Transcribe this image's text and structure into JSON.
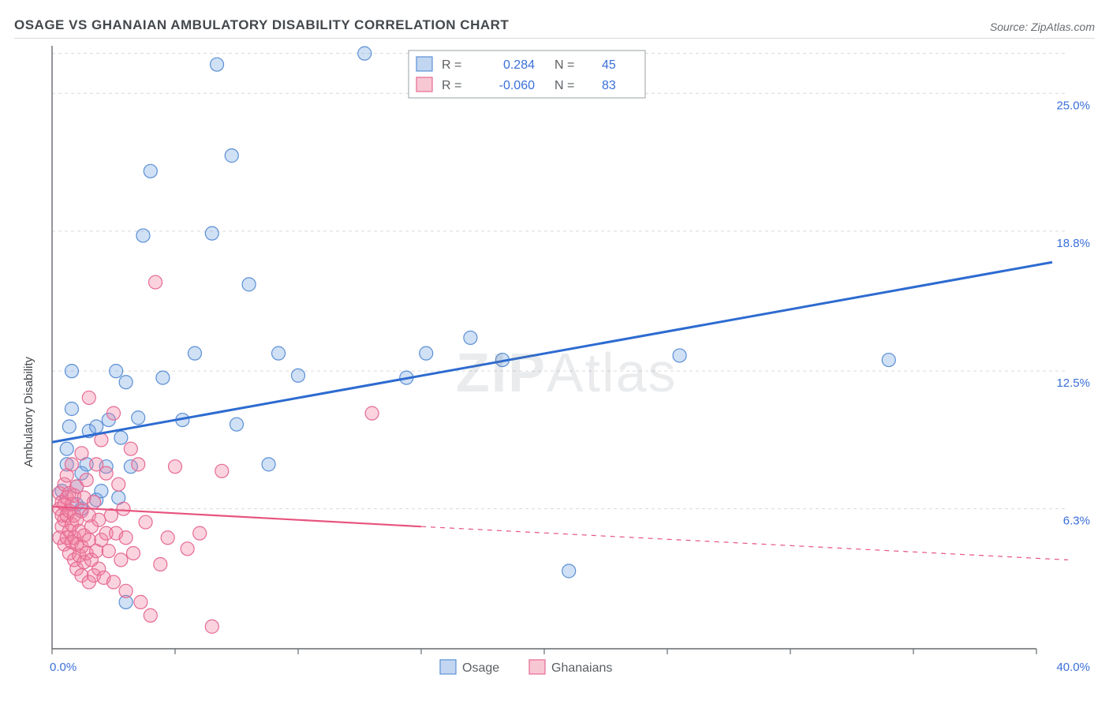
{
  "title": "OSAGE VS GHANAIAN AMBULATORY DISABILITY CORRELATION CHART",
  "source": "Source: ZipAtlas.com",
  "ylabel": "Ambulatory Disability",
  "watermark": "ZIPAtlas",
  "chart": {
    "type": "scatter",
    "xlim": [
      0,
      40
    ],
    "ylim": [
      0,
      27
    ],
    "xticks": [
      0,
      5,
      10,
      15,
      20,
      25,
      30,
      35,
      40
    ],
    "yticks": [
      6.3,
      12.5,
      18.8,
      25.0
    ],
    "xtick_labels": {
      "0": "0.0%",
      "40": "40.0%"
    },
    "ytick_labels": [
      "6.3%",
      "12.5%",
      "18.8%",
      "25.0%"
    ],
    "axis_label_color": "#3a6fd8",
    "axis_label_fontsize": 15,
    "grid_color": "#d9d9d9",
    "axis_color": "#666a6e",
    "background_color": "#ffffff",
    "marker_radius": 8.5,
    "marker_stroke_width": 1.2,
    "series": [
      {
        "name": "Osage",
        "fill": "rgba(120,165,225,0.35)",
        "stroke": "#5a8fd6",
        "points": [
          [
            0.4,
            7.1
          ],
          [
            0.6,
            8.3
          ],
          [
            0.6,
            9.0
          ],
          [
            0.7,
            10.0
          ],
          [
            0.8,
            10.8
          ],
          [
            0.8,
            12.5
          ],
          [
            1.0,
            6.5
          ],
          [
            1.0,
            7.3
          ],
          [
            1.2,
            7.9
          ],
          [
            1.2,
            6.3
          ],
          [
            1.4,
            8.3
          ],
          [
            1.5,
            9.8
          ],
          [
            1.8,
            6.7
          ],
          [
            1.8,
            10.0
          ],
          [
            2.0,
            7.1
          ],
          [
            2.2,
            8.2
          ],
          [
            2.3,
            10.3
          ],
          [
            2.6,
            12.5
          ],
          [
            2.7,
            6.8
          ],
          [
            2.8,
            9.5
          ],
          [
            3.0,
            12.0
          ],
          [
            3.2,
            8.2
          ],
          [
            3.5,
            10.4
          ],
          [
            3.7,
            18.6
          ],
          [
            4.0,
            21.5
          ],
          [
            4.5,
            12.2
          ],
          [
            5.3,
            10.3
          ],
          [
            5.8,
            13.3
          ],
          [
            6.5,
            18.7
          ],
          [
            6.7,
            26.3
          ],
          [
            7.3,
            22.2
          ],
          [
            7.5,
            10.1
          ],
          [
            8.0,
            16.4
          ],
          [
            8.8,
            8.3
          ],
          [
            9.2,
            13.3
          ],
          [
            10.0,
            12.3
          ],
          [
            12.7,
            26.8
          ],
          [
            14.4,
            12.2
          ],
          [
            15.2,
            13.3
          ],
          [
            17.0,
            14.0
          ],
          [
            18.3,
            13.0
          ],
          [
            21.0,
            3.5
          ],
          [
            25.5,
            13.2
          ],
          [
            34.0,
            13.0
          ],
          [
            3.0,
            2.1
          ]
        ],
        "trend": {
          "x1": 0,
          "y1": 9.3,
          "x2": 40,
          "y2": 17.4,
          "color": "#2d6bd0",
          "width": 3
        }
      },
      {
        "name": "Ghanaians",
        "fill": "rgba(240,130,160,0.35)",
        "stroke": "#e66a94",
        "points": [
          [
            0.3,
            5.0
          ],
          [
            0.3,
            6.3
          ],
          [
            0.3,
            7.0
          ],
          [
            0.4,
            5.5
          ],
          [
            0.4,
            6.0
          ],
          [
            0.4,
            6.6
          ],
          [
            0.5,
            4.7
          ],
          [
            0.5,
            5.8
          ],
          [
            0.5,
            6.5
          ],
          [
            0.5,
            7.4
          ],
          [
            0.6,
            5.0
          ],
          [
            0.6,
            6.0
          ],
          [
            0.6,
            6.8
          ],
          [
            0.6,
            7.8
          ],
          [
            0.7,
            4.3
          ],
          [
            0.7,
            5.3
          ],
          [
            0.7,
            6.2
          ],
          [
            0.7,
            7.0
          ],
          [
            0.8,
            4.8
          ],
          [
            0.8,
            5.6
          ],
          [
            0.8,
            6.5
          ],
          [
            0.8,
            8.3
          ],
          [
            0.9,
            4.0
          ],
          [
            0.9,
            5.0
          ],
          [
            0.9,
            6.0
          ],
          [
            0.9,
            6.9
          ],
          [
            1.0,
            3.6
          ],
          [
            1.0,
            4.7
          ],
          [
            1.0,
            5.8
          ],
          [
            1.0,
            7.3
          ],
          [
            1.1,
            4.2
          ],
          [
            1.1,
            5.3
          ],
          [
            1.2,
            3.3
          ],
          [
            1.2,
            4.6
          ],
          [
            1.2,
            6.2
          ],
          [
            1.2,
            8.8
          ],
          [
            1.3,
            3.9
          ],
          [
            1.3,
            5.1
          ],
          [
            1.3,
            6.8
          ],
          [
            1.4,
            4.3
          ],
          [
            1.4,
            7.6
          ],
          [
            1.5,
            3.0
          ],
          [
            1.5,
            4.9
          ],
          [
            1.5,
            6.0
          ],
          [
            1.5,
            11.3
          ],
          [
            1.6,
            4.0
          ],
          [
            1.6,
            5.5
          ],
          [
            1.7,
            3.3
          ],
          [
            1.7,
            6.6
          ],
          [
            1.8,
            4.4
          ],
          [
            1.8,
            8.3
          ],
          [
            1.9,
            3.6
          ],
          [
            1.9,
            5.8
          ],
          [
            2.0,
            4.9
          ],
          [
            2.0,
            9.4
          ],
          [
            2.1,
            3.2
          ],
          [
            2.2,
            5.2
          ],
          [
            2.2,
            7.9
          ],
          [
            2.3,
            4.4
          ],
          [
            2.4,
            6.0
          ],
          [
            2.5,
            3.0
          ],
          [
            2.5,
            10.6
          ],
          [
            2.6,
            5.2
          ],
          [
            2.7,
            7.4
          ],
          [
            2.8,
            4.0
          ],
          [
            2.9,
            6.3
          ],
          [
            3.0,
            2.6
          ],
          [
            3.0,
            5.0
          ],
          [
            3.2,
            9.0
          ],
          [
            3.3,
            4.3
          ],
          [
            3.5,
            8.3
          ],
          [
            3.6,
            2.1
          ],
          [
            3.8,
            5.7
          ],
          [
            4.0,
            1.5
          ],
          [
            4.2,
            16.5
          ],
          [
            4.4,
            3.8
          ],
          [
            4.7,
            5.0
          ],
          [
            5.0,
            8.2
          ],
          [
            5.5,
            4.5
          ],
          [
            6.0,
            5.2
          ],
          [
            6.5,
            1.0
          ],
          [
            6.9,
            8.0
          ],
          [
            13.0,
            10.6
          ]
        ],
        "trend": {
          "x1": 0,
          "y1": 6.4,
          "x2": 40,
          "y2": 4.0,
          "solid_until_x": 15,
          "color": "#e7547f",
          "width": 2.2
        }
      }
    ],
    "stats_box": {
      "border_color": "#9aa0a6",
      "rows": [
        {
          "swatch_fill": "rgba(120,165,225,0.45)",
          "swatch_stroke": "#5a8fd6",
          "r_label": "R =",
          "r_value": "0.284",
          "n_label": "N =",
          "n_value": "45"
        },
        {
          "swatch_fill": "rgba(240,130,160,0.45)",
          "swatch_stroke": "#e66a94",
          "r_label": "R =",
          "r_value": "-0.060",
          "n_label": "N =",
          "n_value": "83"
        }
      ],
      "label_color": "#5b5f63",
      "value_color": "#3a6fd8"
    },
    "bottom_legend": [
      {
        "swatch_fill": "rgba(120,165,225,0.45)",
        "swatch_stroke": "#5a8fd6",
        "label": "Osage"
      },
      {
        "swatch_fill": "rgba(240,130,160,0.45)",
        "swatch_stroke": "#e66a94",
        "label": "Ghanaians"
      }
    ],
    "legend_text_color": "#5b5f63"
  }
}
